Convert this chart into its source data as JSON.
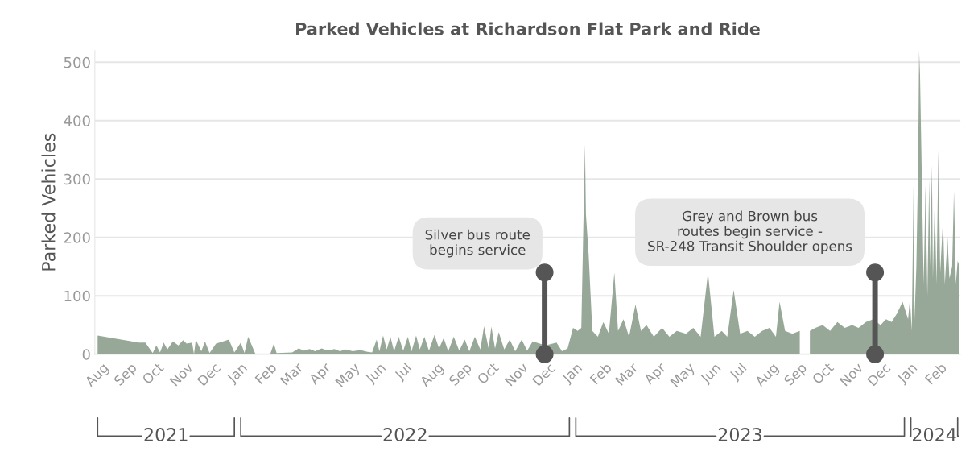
{
  "chart_data": {
    "type": "area",
    "title": "Parked Vehicles at Richardson Flat Park and Ride",
    "ylabel": "Parked Vehicles",
    "xlim": [
      "2021-07-29",
      "2024-02-27"
    ],
    "ylim": [
      0,
      520
    ],
    "yticks": [
      0,
      100,
      200,
      300,
      400,
      500
    ],
    "grid": "y",
    "xticks": [
      {
        "value": "2021-08-01",
        "label": "Aug"
      },
      {
        "value": "2021-09-01",
        "label": "Sep"
      },
      {
        "value": "2021-10-01",
        "label": "Oct"
      },
      {
        "value": "2021-11-01",
        "label": "Nov"
      },
      {
        "value": "2021-12-01",
        "label": "Dec"
      },
      {
        "value": "2022-01-01",
        "label": "Jan"
      },
      {
        "value": "2022-02-01",
        "label": "Feb"
      },
      {
        "value": "2022-03-01",
        "label": "Mar"
      },
      {
        "value": "2022-04-01",
        "label": "Apr"
      },
      {
        "value": "2022-05-01",
        "label": "May"
      },
      {
        "value": "2022-06-01",
        "label": "Jun"
      },
      {
        "value": "2022-07-01",
        "label": "Jul"
      },
      {
        "value": "2022-08-01",
        "label": "Aug"
      },
      {
        "value": "2022-09-01",
        "label": "Sep"
      },
      {
        "value": "2022-10-01",
        "label": "Oct"
      },
      {
        "value": "2022-11-01",
        "label": "Nov"
      },
      {
        "value": "2022-12-01",
        "label": "Dec"
      },
      {
        "value": "2023-01-01",
        "label": "Jan"
      },
      {
        "value": "2023-02-01",
        "label": "Feb"
      },
      {
        "value": "2023-03-01",
        "label": "Mar"
      },
      {
        "value": "2023-04-01",
        "label": "Apr"
      },
      {
        "value": "2023-05-01",
        "label": "May"
      },
      {
        "value": "2023-06-01",
        "label": "Jun"
      },
      {
        "value": "2023-07-01",
        "label": "Jul"
      },
      {
        "value": "2023-08-01",
        "label": "Aug"
      },
      {
        "value": "2023-09-01",
        "label": "Sep"
      },
      {
        "value": "2023-10-01",
        "label": "Oct"
      },
      {
        "value": "2023-11-01",
        "label": "Nov"
      },
      {
        "value": "2023-12-01",
        "label": "Dec"
      },
      {
        "value": "2024-01-01",
        "label": "Jan"
      },
      {
        "value": "2024-02-01",
        "label": "Feb"
      }
    ],
    "annotations": [
      {
        "text": "Silver bus route\nbegins service",
        "x": "2022-12-01",
        "y": 140
      },
      {
        "text": "Grey and Brown bus\nroutes begin service -\nSR-248 Transit Shoulder opens",
        "x": "2023-11-26",
        "y": 140
      },
      "2021",
      "2022",
      "2023",
      "2024"
    ],
    "series": [
      {
        "color": "#98a898",
        "x": [
          "2021-08-01",
          "2021-09-15",
          "2021-09-22",
          "2021-09-30",
          "2021-10-04",
          "2021-10-08",
          "2021-10-12",
          "2021-10-16",
          "2021-10-22",
          "2021-10-28",
          "2021-11-02",
          "2021-11-06",
          "2021-11-12",
          "2021-11-14",
          "2021-11-16",
          "2021-11-22",
          "2021-11-26",
          "2021-12-01",
          "2021-12-08",
          "2021-12-16",
          "2021-12-22",
          "2021-12-28",
          "2022-01-04",
          "2022-01-08",
          "2022-01-12",
          "2022-01-16",
          "2022-01-20",
          "2022-02-05",
          "2022-02-09",
          "2022-02-12",
          "2022-03-01",
          "2022-03-08",
          "2022-03-14",
          "2022-03-20",
          "2022-03-26",
          "2022-04-02",
          "2022-04-09",
          "2022-04-16",
          "2022-04-22",
          "2022-04-28",
          "2022-05-06",
          "2022-05-14",
          "2022-05-22",
          "2022-05-27",
          "2022-06-01",
          "2022-06-04",
          "2022-06-08",
          "2022-06-12",
          "2022-06-16",
          "2022-06-20",
          "2022-06-25",
          "2022-06-30",
          "2022-07-05",
          "2022-07-09",
          "2022-07-14",
          "2022-07-18",
          "2022-07-23",
          "2022-07-28",
          "2022-08-03",
          "2022-08-08",
          "2022-08-13",
          "2022-08-18",
          "2022-08-24",
          "2022-08-30",
          "2022-09-05",
          "2022-09-10",
          "2022-09-16",
          "2022-09-22",
          "2022-09-26",
          "2022-10-01",
          "2022-10-04",
          "2022-10-08",
          "2022-10-12",
          "2022-10-18",
          "2022-10-24",
          "2022-10-30",
          "2022-11-06",
          "2022-11-12",
          "2022-11-18",
          "2022-12-02",
          "2022-12-14",
          "2022-12-20",
          "2022-12-26",
          "2023-01-01",
          "2023-01-06",
          "2023-01-10",
          "2023-01-14",
          "2023-01-15",
          "2023-01-18",
          "2023-01-22",
          "2023-01-28",
          "2023-02-03",
          "2023-02-09",
          "2023-02-15",
          "2023-02-19",
          "2023-02-25",
          "2023-03-03",
          "2023-03-10",
          "2023-03-16",
          "2023-03-22",
          "2023-03-30",
          "2023-04-08",
          "2023-04-16",
          "2023-04-24",
          "2023-05-04",
          "2023-05-12",
          "2023-05-20",
          "2023-05-28",
          "2023-06-04",
          "2023-06-12",
          "2023-06-18",
          "2023-06-25",
          "2023-07-02",
          "2023-07-10",
          "2023-07-18",
          "2023-07-26",
          "2023-08-03",
          "2023-08-10",
          "2023-08-14",
          "2023-08-20",
          "2023-08-28",
          "2023-09-05",
          "2023-09-10",
          "2023-09-16",
          "2023-09-22",
          "2023-09-30",
          "2023-10-08",
          "2023-10-16",
          "2023-10-24",
          "2023-11-01",
          "2023-11-08",
          "2023-11-16",
          "2023-11-24",
          "2023-12-02",
          "2023-12-08",
          "2023-12-14",
          "2023-12-20",
          "2023-12-26",
          "2024-01-01",
          "2024-01-03",
          "2024-01-05",
          "2024-01-07",
          "2024-01-08",
          "2024-01-10",
          "2024-01-12",
          "2024-01-13",
          "2024-01-14",
          "2024-01-16",
          "2024-01-18",
          "2024-01-20",
          "2024-01-22",
          "2024-01-24",
          "2024-01-25",
          "2024-01-27",
          "2024-01-28",
          "2024-01-30",
          "2024-02-01",
          "2024-02-03",
          "2024-02-05",
          "2024-02-08",
          "2024-02-10",
          "2024-02-13",
          "2024-02-15",
          "2024-02-18",
          "2024-02-20",
          "2024-02-22",
          "2024-02-24",
          "2024-02-26"
        ],
        "values": [
          32,
          20,
          20,
          2,
          15,
          3,
          20,
          8,
          22,
          15,
          24,
          18,
          20,
          0,
          25,
          5,
          22,
          2,
          18,
          22,
          25,
          3,
          20,
          2,
          30,
          15,
          0,
          0,
          18,
          2,
          3,
          10,
          6,
          9,
          5,
          10,
          6,
          9,
          5,
          8,
          5,
          7,
          4,
          3,
          25,
          5,
          32,
          8,
          30,
          5,
          30,
          6,
          30,
          5,
          32,
          8,
          30,
          6,
          33,
          10,
          28,
          5,
          30,
          6,
          25,
          5,
          30,
          8,
          48,
          10,
          47,
          10,
          38,
          8,
          25,
          5,
          25,
          6,
          22,
          15,
          20,
          5,
          10,
          45,
          40,
          45,
          360,
          240,
          170,
          40,
          30,
          55,
          35,
          140,
          40,
          60,
          30,
          85,
          40,
          50,
          30,
          45,
          30,
          40,
          35,
          45,
          30,
          140,
          30,
          40,
          30,
          110,
          35,
          40,
          30,
          40,
          45,
          30,
          90,
          40,
          35,
          40,
          null,
          40,
          45,
          50,
          40,
          55,
          45,
          50,
          45,
          55,
          60,
          50,
          60,
          55,
          70,
          90,
          60,
          95,
          40,
          290,
          60,
          150,
          330,
          520,
          480,
          300,
          120,
          290,
          100,
          300,
          150,
          325,
          130,
          260,
          120,
          350,
          140,
          230,
          120,
          200,
          130,
          150,
          280,
          120,
          160,
          150
        ]
      }
    ]
  }
}
